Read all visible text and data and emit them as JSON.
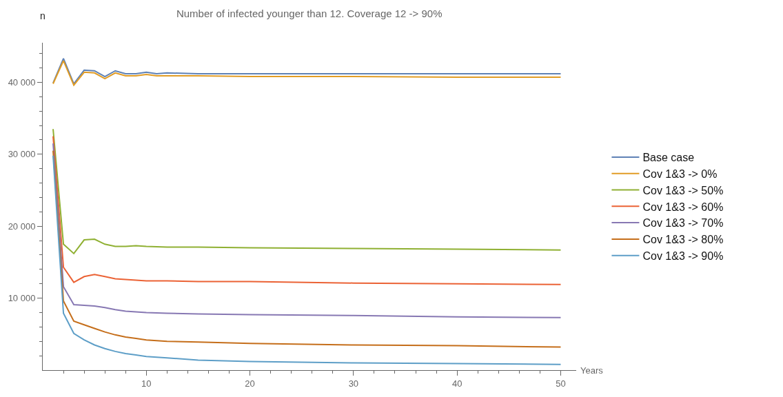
{
  "chart_data": {
    "type": "line",
    "title": "Number of infected younger than 12. Coverage 12 -> 90%",
    "xlabel": "Years",
    "ylabel": "n",
    "xlim": [
      0,
      51.5
    ],
    "ylim": [
      0,
      45500
    ],
    "xticks": [
      {
        "value": 2,
        "label": null
      },
      {
        "value": 4,
        "label": null
      },
      {
        "value": 6,
        "label": null
      },
      {
        "value": 8,
        "label": null
      },
      10,
      {
        "value": 12,
        "label": null
      },
      {
        "value": 14,
        "label": null
      },
      {
        "value": 16,
        "label": null
      },
      {
        "value": 18,
        "label": null
      },
      20,
      {
        "value": 22,
        "label": null
      },
      {
        "value": 24,
        "label": null
      },
      {
        "value": 26,
        "label": null
      },
      {
        "value": 28,
        "label": null
      },
      30,
      {
        "value": 32,
        "label": null
      },
      {
        "value": 34,
        "label": null
      },
      {
        "value": 36,
        "label": null
      },
      {
        "value": 38,
        "label": null
      },
      40,
      {
        "value": 42,
        "label": null
      },
      {
        "value": 44,
        "label": null
      },
      {
        "value": 46,
        "label": null
      },
      {
        "value": 48,
        "label": null
      },
      50
    ],
    "yticks": [
      {
        "value": 2000,
        "label": null
      },
      {
        "value": 4000,
        "label": null
      },
      {
        "value": 6000,
        "label": null
      },
      {
        "value": 8000,
        "label": null
      },
      {
        "value": 10000,
        "label": "10 000"
      },
      {
        "value": 12000,
        "label": null
      },
      {
        "value": 14000,
        "label": null
      },
      {
        "value": 16000,
        "label": null
      },
      {
        "value": 18000,
        "label": null
      },
      {
        "value": 20000,
        "label": "20 000"
      },
      {
        "value": 22000,
        "label": null
      },
      {
        "value": 24000,
        "label": null
      },
      {
        "value": 26000,
        "label": null
      },
      {
        "value": 28000,
        "label": null
      },
      {
        "value": 30000,
        "label": "30 000"
      },
      {
        "value": 32000,
        "label": null
      },
      {
        "value": 34000,
        "label": null
      },
      {
        "value": 36000,
        "label": null
      },
      {
        "value": 38000,
        "label": null
      },
      {
        "value": 40000,
        "label": "40 000"
      },
      {
        "value": 42000,
        "label": null
      },
      {
        "value": 44000,
        "label": null
      }
    ],
    "legend": "right",
    "marker": "none",
    "line_style": "solid",
    "series": [
      {
        "name": "Base case",
        "color": "#5e81b5",
        "x": [
          1,
          2,
          3,
          4,
          5,
          6,
          7,
          8,
          9,
          10,
          11,
          12,
          15,
          20,
          30,
          40,
          50
        ],
        "values": [
          39900,
          43300,
          39800,
          41700,
          41600,
          40800,
          41600,
          41200,
          41200,
          41400,
          41200,
          41300,
          41200,
          41200,
          41200,
          41200,
          41200
        ]
      },
      {
        "name": "Cov 1&3 -> 0%",
        "color": "#e19c24",
        "x": [
          1,
          2,
          3,
          4,
          5,
          6,
          7,
          8,
          9,
          10,
          11,
          12,
          15,
          20,
          30,
          40,
          50
        ],
        "values": [
          39800,
          43000,
          39600,
          41400,
          41300,
          40500,
          41300,
          40900,
          40900,
          41100,
          40900,
          40900,
          40900,
          40800,
          40800,
          40700,
          40700
        ]
      },
      {
        "name": "Cov 1&3 -> 50%",
        "color": "#8fb032",
        "x": [
          1,
          2,
          3,
          4,
          5,
          6,
          7,
          8,
          9,
          10,
          12,
          15,
          20,
          30,
          40,
          50
        ],
        "values": [
          33500,
          17500,
          16200,
          18100,
          18200,
          17500,
          17200,
          17200,
          17300,
          17200,
          17100,
          17100,
          17000,
          16900,
          16800,
          16700
        ]
      },
      {
        "name": "Cov 1&3 -> 60%",
        "color": "#eb6235",
        "x": [
          1,
          2,
          3,
          4,
          5,
          6,
          7,
          8,
          9,
          10,
          12,
          15,
          20,
          30,
          40,
          50
        ],
        "values": [
          32500,
          14300,
          12200,
          13000,
          13300,
          13000,
          12700,
          12600,
          12500,
          12400,
          12400,
          12300,
          12300,
          12100,
          12000,
          11900
        ]
      },
      {
        "name": "Cov 1&3 -> 70%",
        "color": "#8778b3",
        "x": [
          1,
          2,
          3,
          4,
          5,
          6,
          7,
          8,
          9,
          10,
          12,
          15,
          20,
          30,
          40,
          50
        ],
        "values": [
          31500,
          11600,
          9100,
          9000,
          8900,
          8700,
          8400,
          8200,
          8100,
          8000,
          7900,
          7800,
          7700,
          7600,
          7400,
          7300
        ]
      },
      {
        "name": "Cov 1&3 -> 80%",
        "color": "#c56e1a",
        "x": [
          1,
          2,
          3,
          4,
          5,
          6,
          7,
          8,
          9,
          10,
          12,
          15,
          20,
          30,
          40,
          50
        ],
        "values": [
          30500,
          9600,
          6800,
          6300,
          5800,
          5300,
          4900,
          4600,
          4400,
          4200,
          4000,
          3900,
          3700,
          3500,
          3400,
          3200
        ]
      },
      {
        "name": "Cov 1&3 -> 90%",
        "color": "#5d9ec7",
        "x": [
          1,
          2,
          3,
          4,
          5,
          6,
          7,
          8,
          9,
          10,
          12,
          15,
          20,
          30,
          40,
          50
        ],
        "values": [
          29800,
          7900,
          5100,
          4200,
          3500,
          3000,
          2600,
          2300,
          2100,
          1900,
          1700,
          1400,
          1200,
          1000,
          900,
          800
        ]
      }
    ]
  }
}
